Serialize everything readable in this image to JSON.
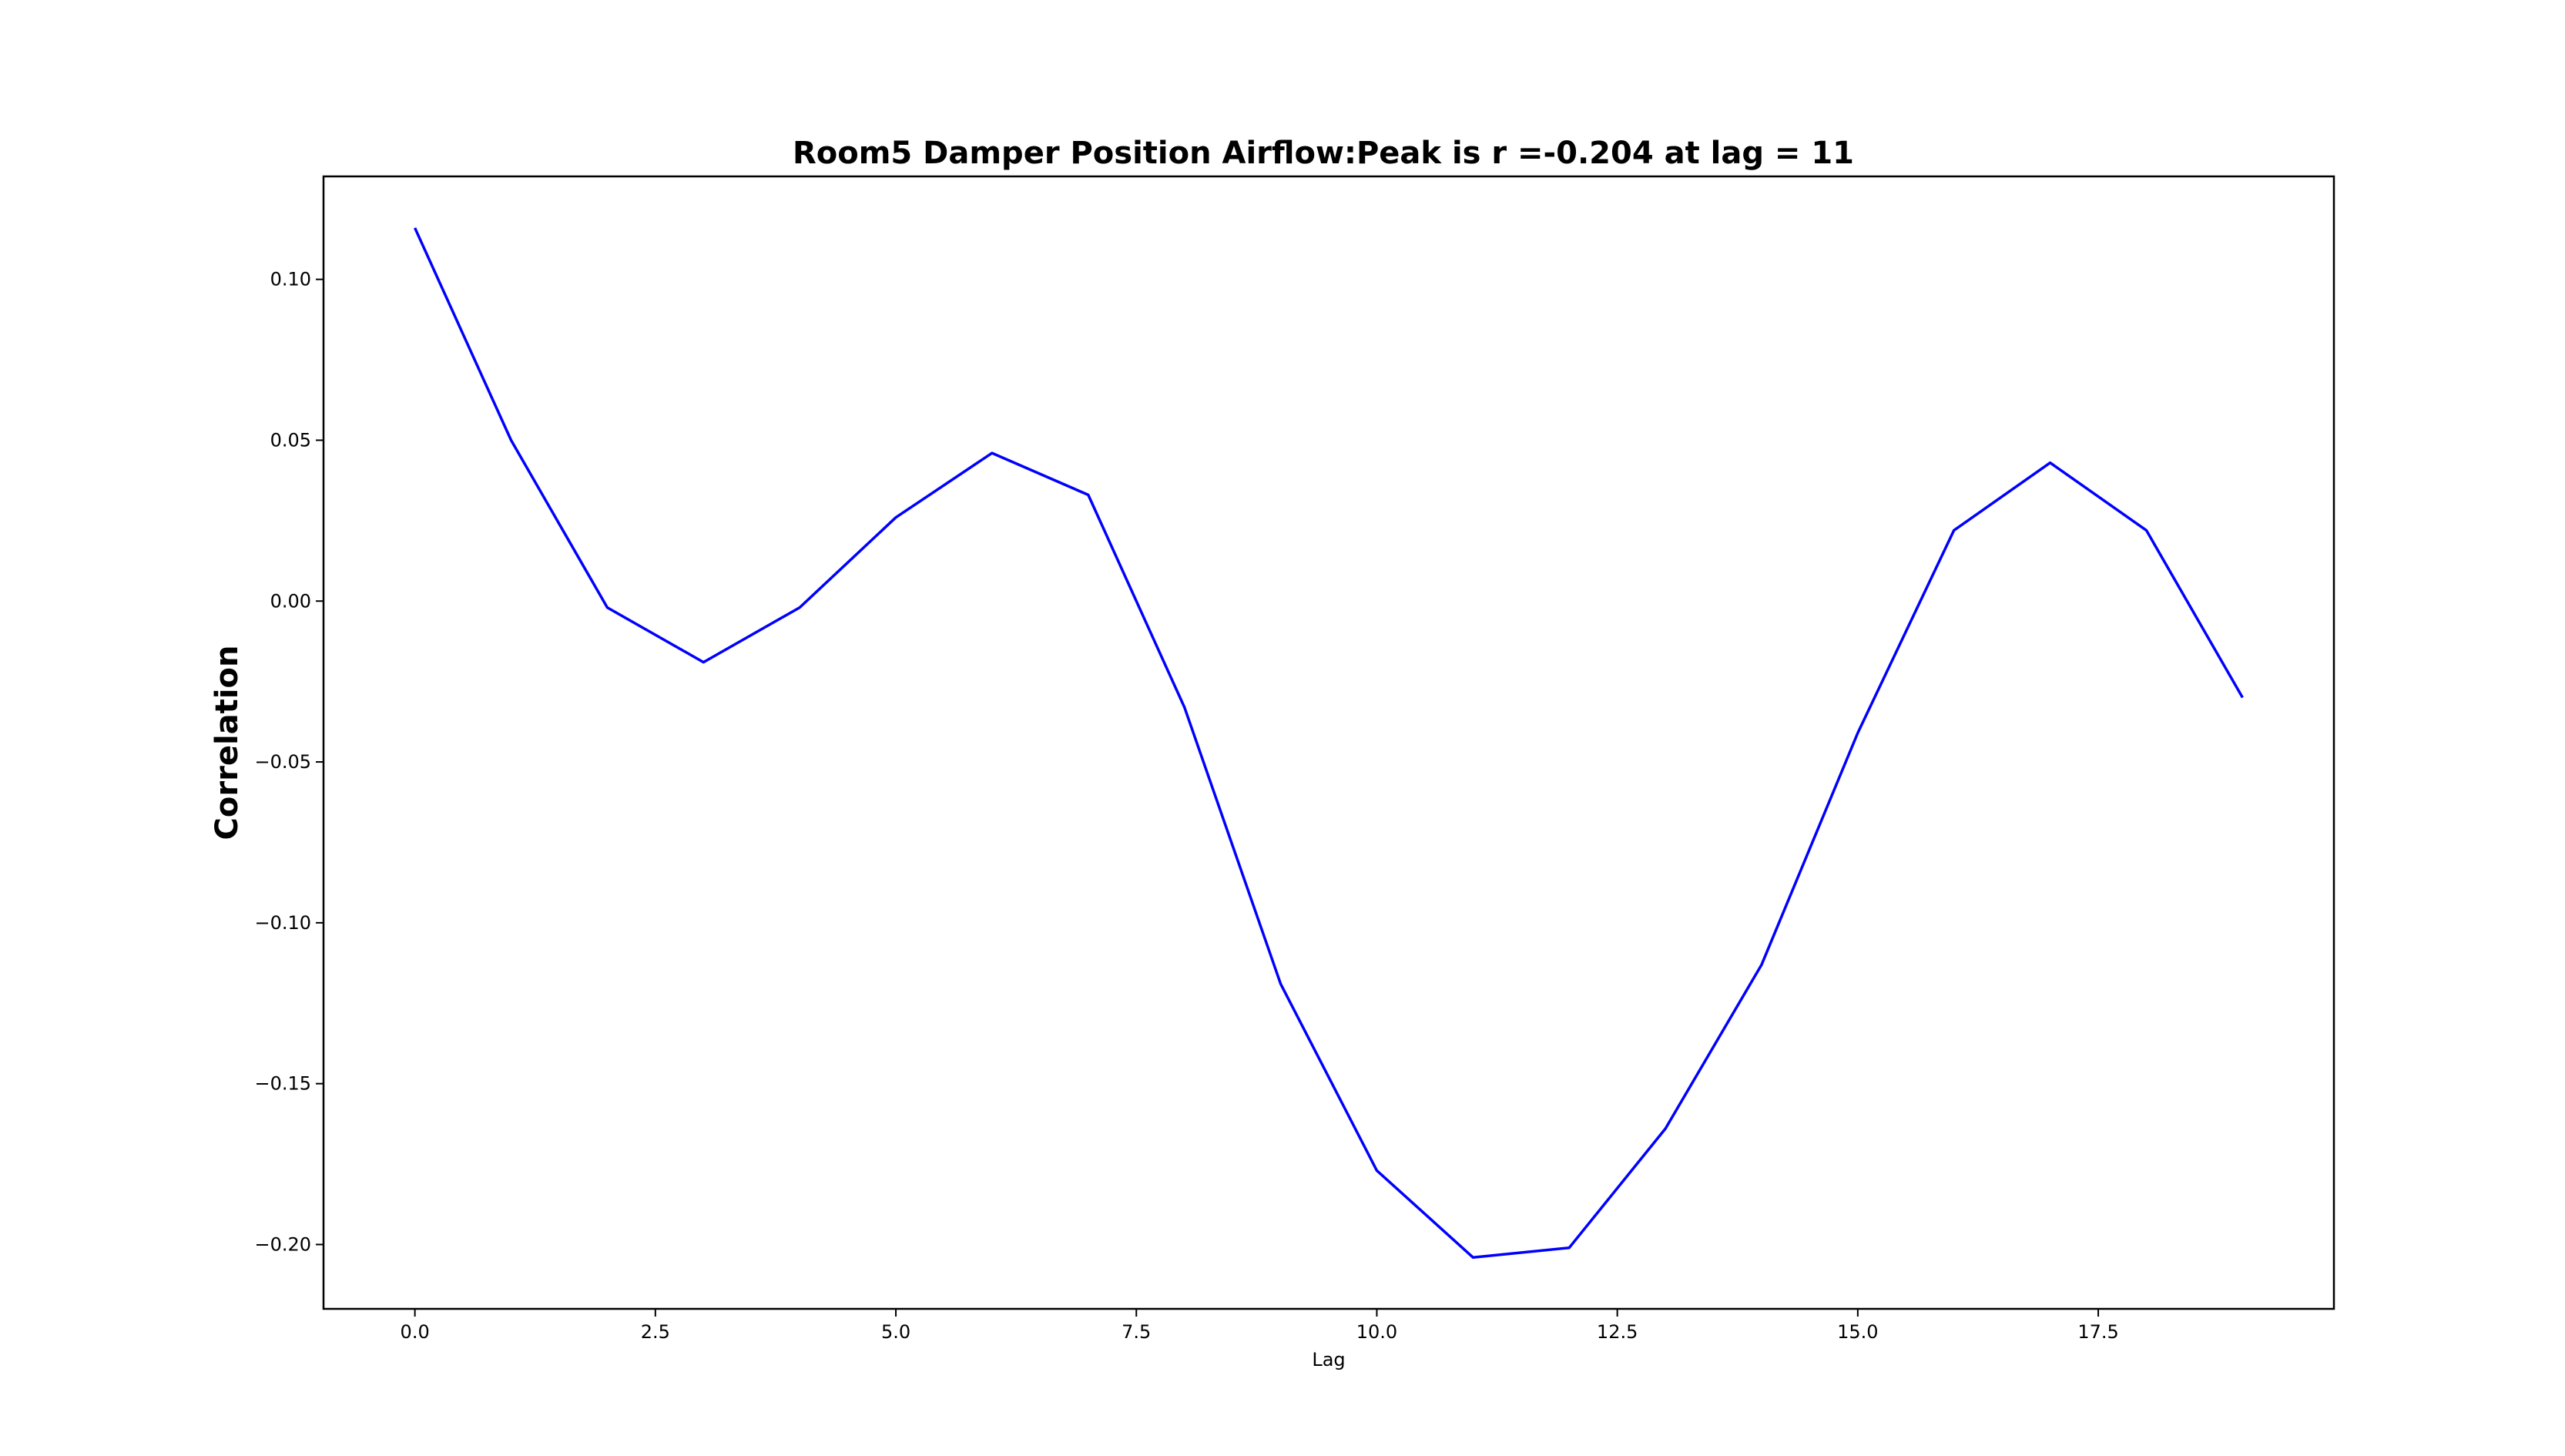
{
  "chart_data": {
    "type": "line",
    "title": "Room5 Damper Position Airflow:Peak is r =-0.204 at lag = 11",
    "xlabel": "Lag",
    "ylabel": "Correlation",
    "xlim": [
      -0.95,
      19.95
    ],
    "ylim": [
      -0.22,
      0.132
    ],
    "xticks": [
      0.0,
      2.5,
      5.0,
      7.5,
      10.0,
      12.5,
      15.0,
      17.5
    ],
    "xtick_labels": [
      "0.0",
      "2.5",
      "5.0",
      "7.5",
      "10.0",
      "12.5",
      "15.0",
      "17.5"
    ],
    "yticks": [
      0.1,
      0.05,
      0.0,
      -0.05,
      -0.1,
      -0.15,
      -0.2
    ],
    "ytick_labels": [
      "0.10",
      "0.05",
      "0.00",
      "−0.05",
      "−0.10",
      "−0.15",
      "−0.20"
    ],
    "grid": false,
    "series": [
      {
        "name": "Correlation",
        "color": "#0000ff",
        "x": [
          0,
          1,
          2,
          3,
          4,
          5,
          6,
          7,
          8,
          9,
          10,
          11,
          12,
          13,
          14,
          15,
          16,
          17,
          18,
          19
        ],
        "values": [
          0.116,
          0.05,
          -0.002,
          -0.019,
          -0.002,
          0.026,
          0.046,
          0.033,
          -0.033,
          -0.119,
          -0.177,
          -0.204,
          -0.201,
          -0.164,
          -0.113,
          -0.041,
          0.022,
          0.043,
          0.022,
          -0.03
        ]
      }
    ]
  }
}
